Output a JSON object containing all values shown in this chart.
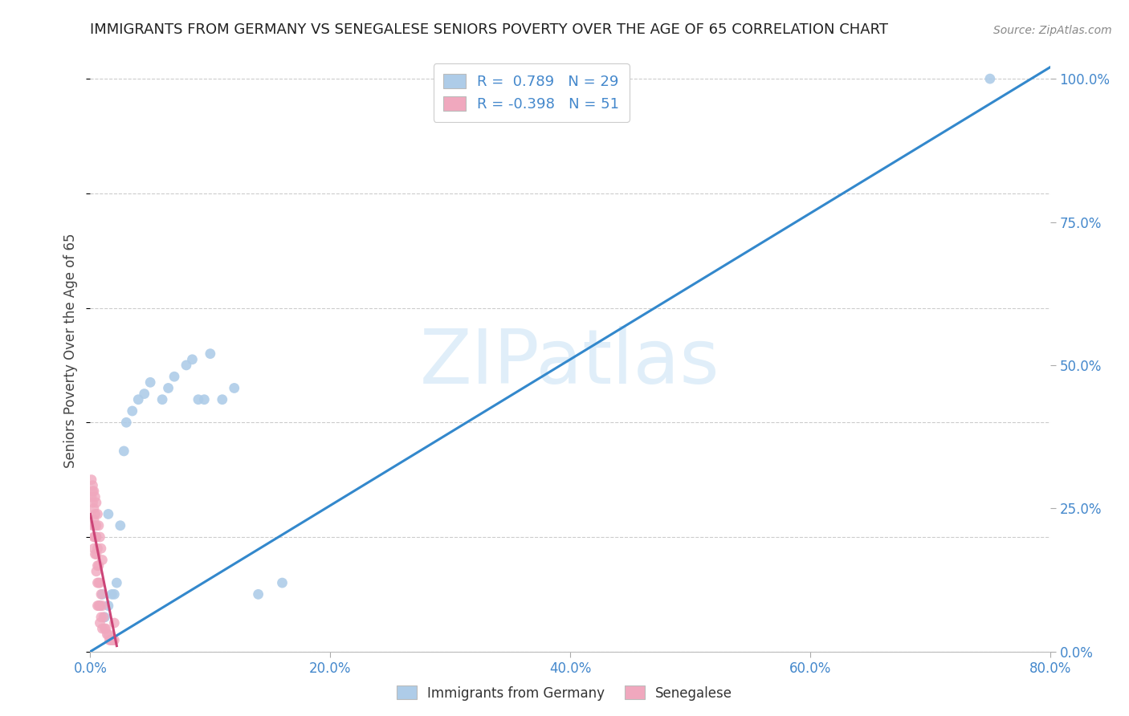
{
  "title": "IMMIGRANTS FROM GERMANY VS SENEGALESE SENIORS POVERTY OVER THE AGE OF 65 CORRELATION CHART",
  "source": "Source: ZipAtlas.com",
  "xlim": [
    0.0,
    0.8
  ],
  "ylim": [
    0.0,
    1.05
  ],
  "watermark": "ZIPatlas",
  "legend_r_blue": "0.789",
  "legend_n_blue": "29",
  "legend_r_pink": "-0.398",
  "legend_n_pink": "51",
  "blue_scatter_x": [
    0.005,
    0.008,
    0.01,
    0.012,
    0.015,
    0.018,
    0.02,
    0.022,
    0.025,
    0.028,
    0.03,
    0.035,
    0.04,
    0.045,
    0.05,
    0.06,
    0.065,
    0.07,
    0.08,
    0.085,
    0.09,
    0.095,
    0.1,
    0.11,
    0.12,
    0.14,
    0.16,
    0.75,
    0.015
  ],
  "blue_scatter_y": [
    0.2,
    0.08,
    0.1,
    0.06,
    0.08,
    0.1,
    0.1,
    0.12,
    0.22,
    0.35,
    0.4,
    0.42,
    0.44,
    0.45,
    0.47,
    0.44,
    0.46,
    0.48,
    0.5,
    0.51,
    0.44,
    0.44,
    0.52,
    0.44,
    0.46,
    0.1,
    0.12,
    1.0,
    0.24
  ],
  "pink_scatter_x": [
    0.001,
    0.002,
    0.002,
    0.002,
    0.003,
    0.003,
    0.003,
    0.003,
    0.004,
    0.004,
    0.004,
    0.004,
    0.005,
    0.005,
    0.005,
    0.005,
    0.006,
    0.006,
    0.006,
    0.006,
    0.007,
    0.007,
    0.007,
    0.008,
    0.008,
    0.008,
    0.009,
    0.009,
    0.01,
    0.01,
    0.011,
    0.012,
    0.013,
    0.014,
    0.015,
    0.016,
    0.017,
    0.018,
    0.019,
    0.02,
    0.001,
    0.002,
    0.003,
    0.004,
    0.005,
    0.006,
    0.007,
    0.008,
    0.009,
    0.01,
    0.02
  ],
  "pink_scatter_y": [
    0.27,
    0.28,
    0.26,
    0.22,
    0.25,
    0.23,
    0.2,
    0.18,
    0.24,
    0.22,
    0.2,
    0.17,
    0.22,
    0.2,
    0.17,
    0.14,
    0.18,
    0.15,
    0.12,
    0.08,
    0.15,
    0.12,
    0.08,
    0.12,
    0.08,
    0.05,
    0.1,
    0.06,
    0.08,
    0.04,
    0.06,
    0.04,
    0.04,
    0.03,
    0.03,
    0.02,
    0.02,
    0.02,
    0.02,
    0.02,
    0.3,
    0.29,
    0.28,
    0.27,
    0.26,
    0.24,
    0.22,
    0.2,
    0.18,
    0.16,
    0.05
  ],
  "blue_line_x": [
    0.0,
    0.8
  ],
  "blue_line_y": [
    0.0,
    1.02
  ],
  "pink_line_x": [
    0.0,
    0.022
  ],
  "pink_line_y": [
    0.24,
    0.01
  ],
  "blue_color": "#aecce8",
  "pink_color": "#f0a8be",
  "blue_line_color": "#3388cc",
  "pink_line_color": "#cc4477",
  "marker_size": 85,
  "background_color": "#ffffff",
  "grid_color": "#cccccc",
  "axis_label_color": "#4488cc",
  "ylabel": "Seniors Poverty Over the Age of 65",
  "x_tick_vals": [
    0.0,
    0.2,
    0.4,
    0.6,
    0.8
  ],
  "x_tick_labels": [
    "0.0%",
    "20.0%",
    "40.0%",
    "60.0%",
    "80.0%"
  ],
  "y_tick_vals": [
    0.0,
    0.25,
    0.5,
    0.75,
    1.0
  ],
  "y_tick_labels": [
    "0.0%",
    "25.0%",
    "50.0%",
    "75.0%",
    "100.0%"
  ]
}
